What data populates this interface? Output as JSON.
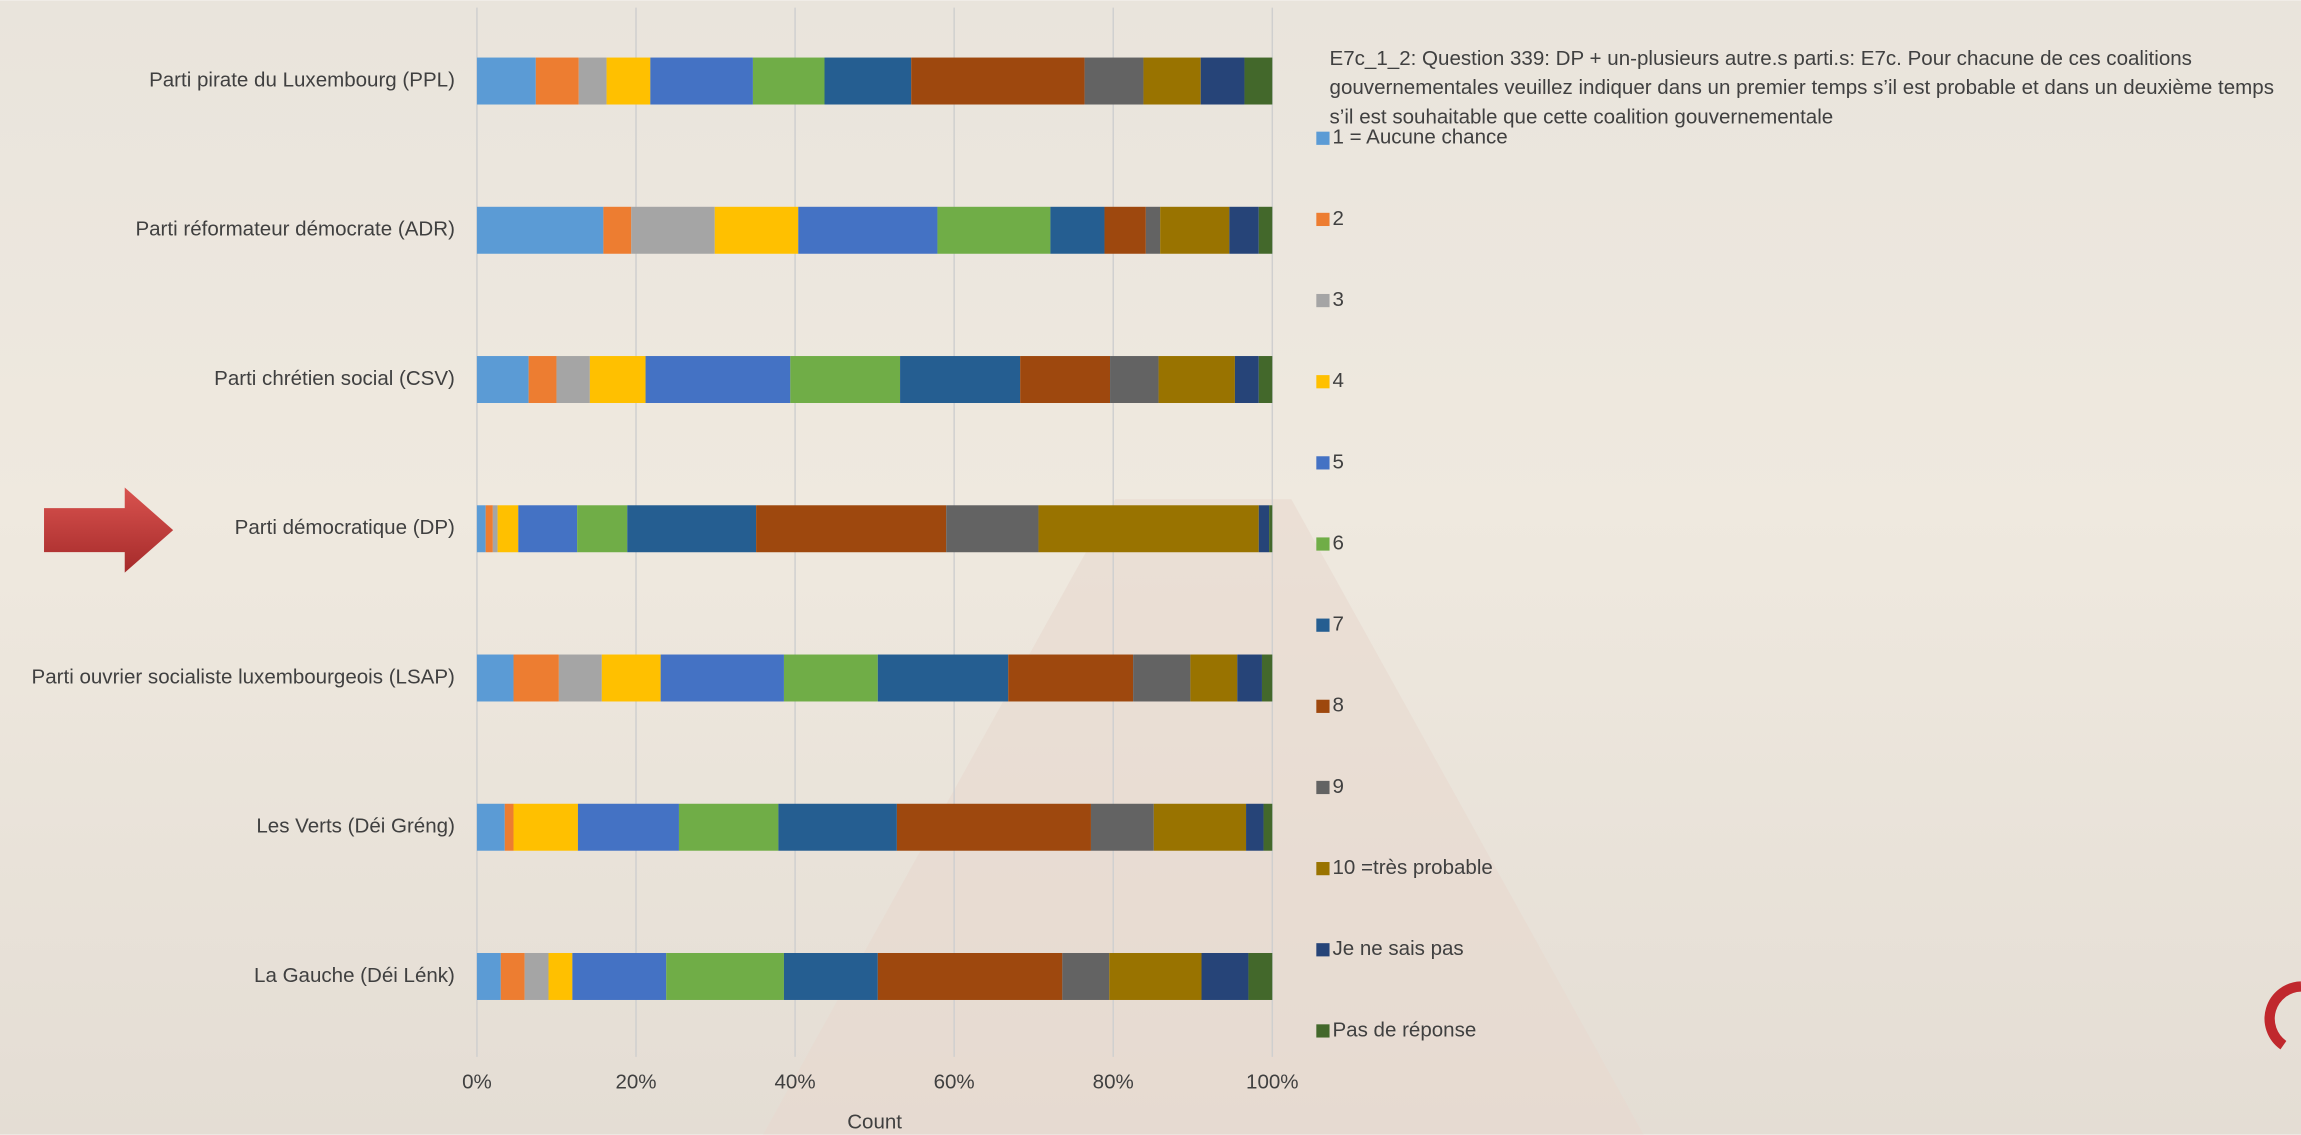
{
  "chart_data": {
    "type": "stacked-bar-horizontal",
    "legend_title": "E7c_1_2: Question 339: DP + un-plusieurs autre.s parti.s: E7c. Pour chacune de ces coalitions gouvernementales veuillez indiquer dans un premier temps s’il est probable et dans un deuxième temps s’il est souhaitable que cette coalition gouvernementale",
    "xlabel": "Count",
    "categories": [
      "Parti pirate du Luxembourg (PPL)",
      "Parti réformateur démocrate (ADR)",
      "Parti chrétien social (CSV)",
      "Parti démocratique (DP)",
      "Parti ouvrier socialiste luxembourgeois (LSAP)",
      "Les Verts (Déi Gréng)",
      "La Gauche (Déi Lénk)"
    ],
    "series": [
      {
        "name": "1 = Aucune chance",
        "color": "#5b9bd5",
        "values": [
          7.4,
          15.9,
          6.5,
          1.1,
          4.6,
          3.5,
          3.0
        ]
      },
      {
        "name": "2",
        "color": "#ed7d31",
        "values": [
          5.4,
          3.5,
          3.5,
          0.9,
          5.7,
          1.1,
          3.0
        ]
      },
      {
        "name": "3",
        "color": "#a5a5a5",
        "values": [
          3.5,
          10.5,
          4.2,
          0.6,
          5.4,
          0,
          3.0
        ]
      },
      {
        "name": "4",
        "color": "#ffc000",
        "values": [
          5.5,
          10.5,
          7.0,
          2.6,
          7.4,
          8.1,
          3.0
        ]
      },
      {
        "name": "5",
        "color": "#4472c4",
        "values": [
          12.9,
          17.5,
          18.2,
          7.4,
          15.5,
          12.7,
          11.8
        ]
      },
      {
        "name": "6",
        "color": "#70ad47",
        "values": [
          9.0,
          14.2,
          13.8,
          6.3,
          11.8,
          12.5,
          14.8
        ]
      },
      {
        "name": "7",
        "color": "#255e91",
        "values": [
          10.9,
          6.8,
          15.1,
          16.2,
          16.4,
          14.9,
          11.8
        ]
      },
      {
        "name": "8",
        "color": "#9e480e",
        "values": [
          21.8,
          5.2,
          11.3,
          23.9,
          15.7,
          24.4,
          23.2
        ]
      },
      {
        "name": "9",
        "color": "#636363",
        "values": [
          7.4,
          1.8,
          6.1,
          11.6,
          7.2,
          7.9,
          5.9
        ]
      },
      {
        "name": "10 =très probable",
        "color": "#997300",
        "values": [
          7.2,
          8.7,
          9.6,
          27.7,
          5.9,
          11.6,
          11.6
        ]
      },
      {
        "name": "Je ne sais pas",
        "color": "#264478",
        "values": [
          5.5,
          3.7,
          3.0,
          1.3,
          3.1,
          2.2,
          5.9
        ]
      },
      {
        "name": "Pas de réponse",
        "color": "#43682b",
        "values": [
          3.5,
          1.7,
          1.7,
          0.4,
          1.3,
          1.1,
          3.0
        ]
      }
    ],
    "xlim": [
      0,
      100
    ],
    "xticks": [
      {
        "value": 0,
        "label": "0%"
      },
      {
        "value": 20,
        "label": "20%"
      },
      {
        "value": 40,
        "label": "40%"
      },
      {
        "value": 60,
        "label": "60%"
      },
      {
        "value": 80,
        "label": "80%"
      },
      {
        "value": 100,
        "label": "100%"
      }
    ],
    "grid": true
  }
}
